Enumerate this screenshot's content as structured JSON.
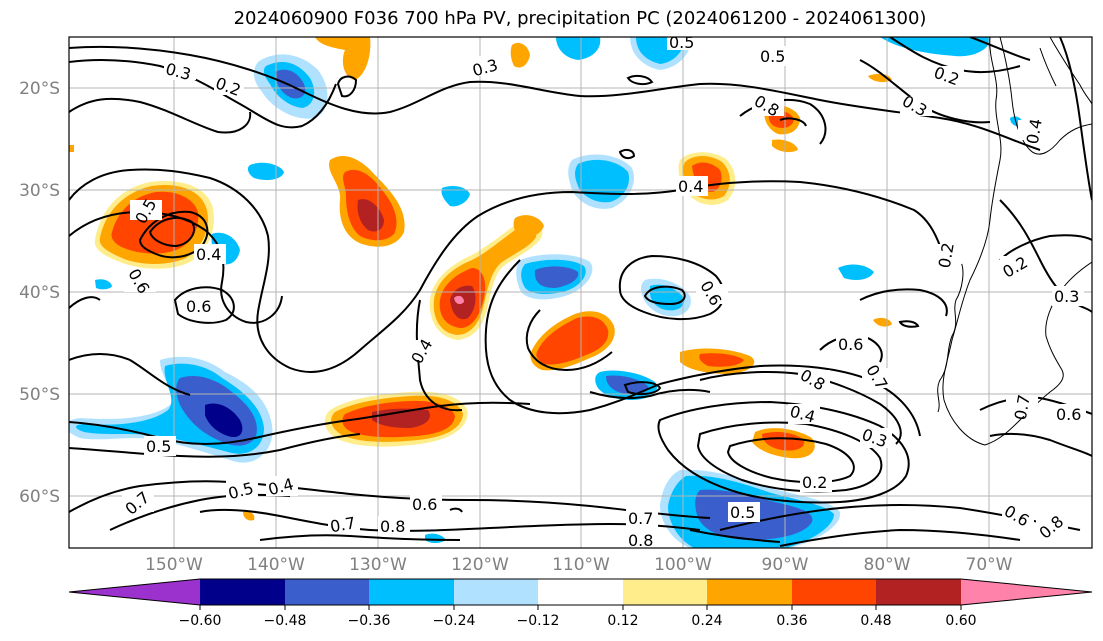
{
  "title": "2024060900 F036 700 hPa PV, precipitation PC (2024061200 - 2024061300)",
  "map": {
    "lon_ticks": [
      "150°W",
      "140°W",
      "130°W",
      "120°W",
      "110°W",
      "100°W",
      "90°W",
      "80°W",
      "70°W"
    ],
    "lat_ticks": [
      "20°S",
      "30°S",
      "40°S",
      "50°S",
      "60°S"
    ],
    "contour_labels": [
      "0.3",
      "0.2",
      "0.3",
      "0.5",
      "0.5",
      "0.2",
      "0.3",
      "0.8",
      "0.4",
      "0.5",
      "0.4",
      "0.6",
      "0.6",
      "0.4",
      "0.6",
      "0.6",
      "0.7",
      "0.8",
      "0.4",
      "0.3",
      "0.5",
      "0.2",
      "0.5",
      "0.4",
      "0.7",
      "0.6",
      "0.8",
      "0.7",
      "0.8",
      "0.7",
      "0.5",
      "0.2",
      "0.4",
      "0.2",
      "0.3",
      "0.7",
      "0.6",
      "0.6",
      "0.8"
    ]
  },
  "colorbar": {
    "ticks": [
      "−0.60",
      "−0.48",
      "−0.36",
      "−0.24",
      "−0.12",
      "0.12",
      "0.24",
      "0.36",
      "0.48",
      "0.60"
    ],
    "colors": [
      "#9b32cd",
      "#00008b",
      "#3a5fcd",
      "#00bfff",
      "#b0e2ff",
      "#ffffff",
      "#ffec8b",
      "#ffa500",
      "#ff4500",
      "#b22222",
      "#ff82ab"
    ]
  }
}
